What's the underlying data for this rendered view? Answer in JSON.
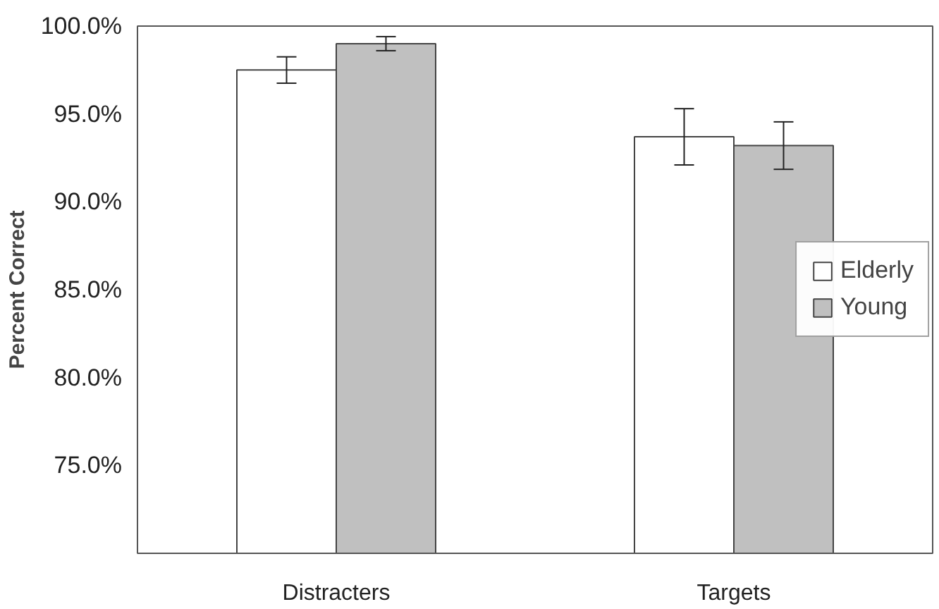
{
  "chart_data": {
    "type": "bar",
    "ylabel": "Percent Correct",
    "categories": [
      "Distracters",
      "Targets"
    ],
    "series": [
      {
        "name": "Elderly",
        "color": "#ffffff",
        "values": [
          97.5,
          93.7
        ],
        "errors": [
          0.75,
          1.6
        ]
      },
      {
        "name": "Young",
        "color": "#c0c0c0",
        "values": [
          99.0,
          93.2
        ],
        "errors": [
          0.4,
          1.35
        ]
      }
    ],
    "ylim": [
      70,
      100
    ],
    "yticks": [
      {
        "value": 75,
        "label": "75.0%"
      },
      {
        "value": 80,
        "label": "80.0%"
      },
      {
        "value": 85,
        "label": "85.0%"
      },
      {
        "value": 90,
        "label": "90.0%"
      },
      {
        "value": 95,
        "label": "95.0%"
      },
      {
        "value": 100,
        "label": "100.0%"
      }
    ],
    "legend": "right"
  }
}
